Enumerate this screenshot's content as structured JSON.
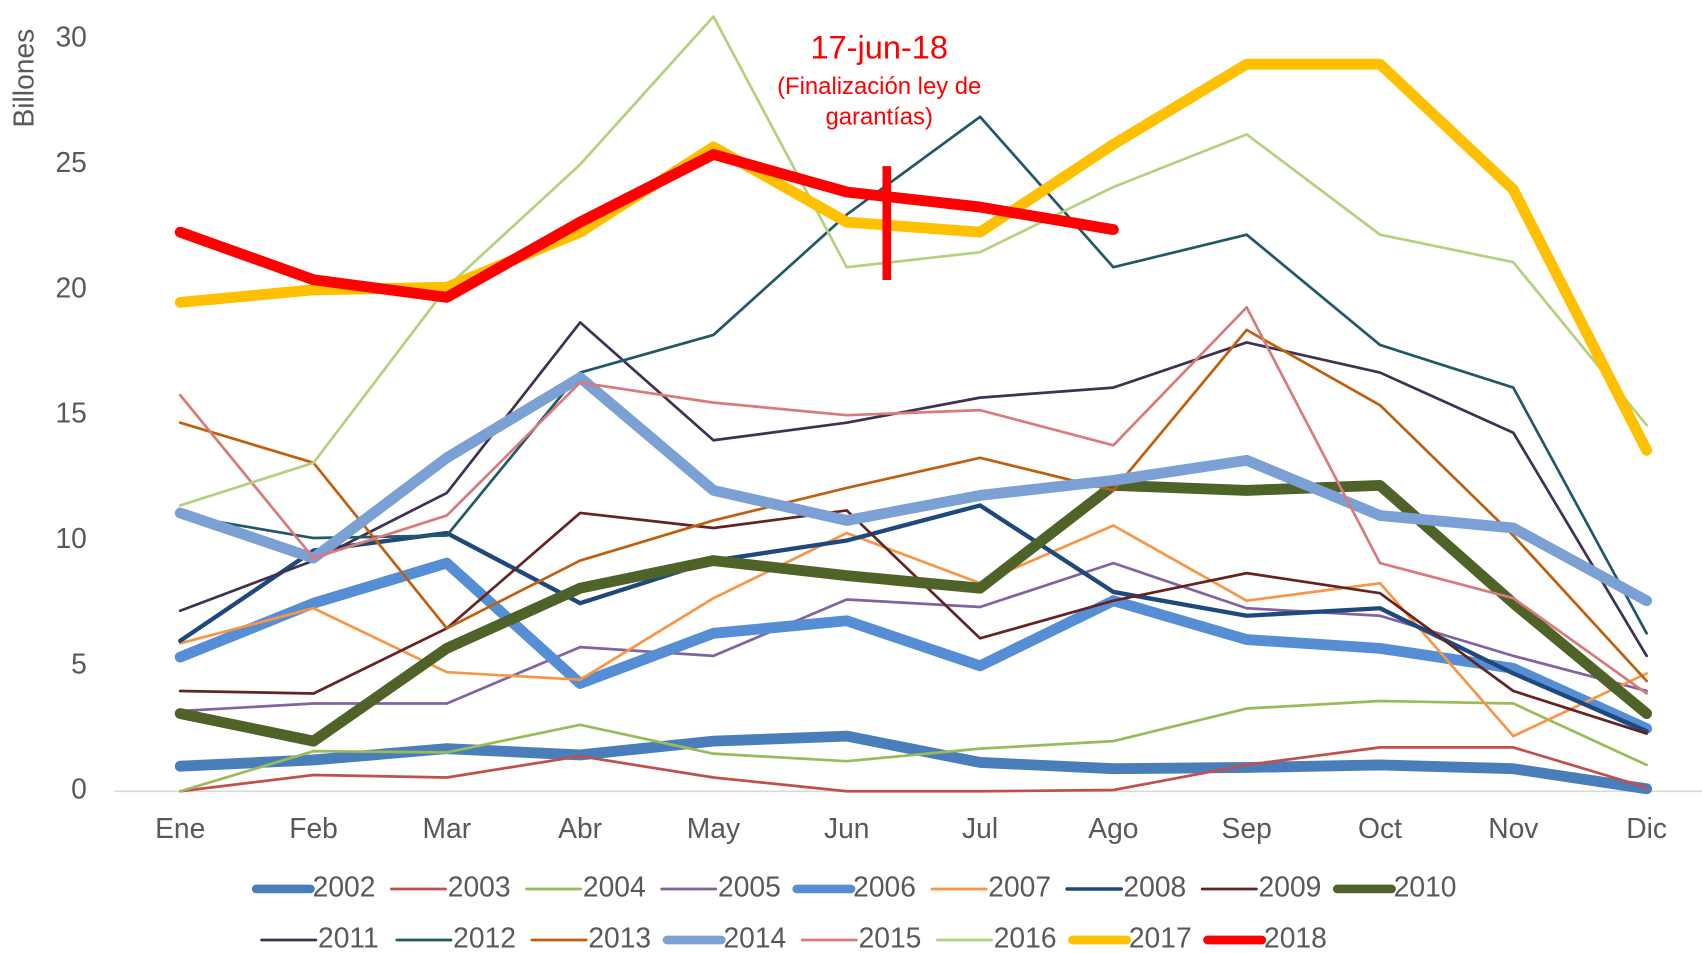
{
  "chart_data": {
    "type": "line",
    "y_label": "Billones",
    "categories": [
      "Ene",
      "Feb",
      "Mar",
      "Abr",
      "May",
      "Jun",
      "Jul",
      "Ago",
      "Sep",
      "Oct",
      "Nov",
      "Dic"
    ],
    "ylim": [
      0,
      30
    ],
    "yticks": [
      0,
      5,
      10,
      15,
      20,
      25,
      30
    ],
    "grid": false,
    "legend": "bottom",
    "annotation": {
      "title": "17-jun-18",
      "lines": [
        "(Finalización ley de",
        "garantías)"
      ],
      "color": "#ff0000"
    },
    "series": [
      {
        "name": "2002",
        "color": "#4a7ebb",
        "linewidth": 10,
        "values": [
          1.0,
          1.25,
          1.7,
          1.45,
          2.0,
          2.2,
          1.15,
          0.9,
          0.95,
          1.05,
          0.9,
          0.1
        ]
      },
      {
        "name": "2003",
        "color": "#c0504d",
        "linewidth": 2.5,
        "values": [
          0,
          0.65,
          0.55,
          1.4,
          0.55,
          0,
          0,
          0.05,
          1.05,
          1.75,
          1.75,
          0.15
        ]
      },
      {
        "name": "2004",
        "color": "#9bbb59",
        "linewidth": 2.5,
        "values": [
          0,
          1.6,
          1.55,
          2.65,
          1.5,
          1.2,
          1.7,
          2.0,
          3.3,
          3.6,
          3.5,
          1.05
        ]
      },
      {
        "name": "2005",
        "color": "#8064a2",
        "linewidth": 2.5,
        "values": [
          3.2,
          3.5,
          3.5,
          5.75,
          5.4,
          7.65,
          7.35,
          9.1,
          7.3,
          7.0,
          5.4,
          4.0
        ]
      },
      {
        "name": "2006",
        "color": "#558ed5",
        "linewidth": 10,
        "values": [
          5.35,
          7.5,
          9.1,
          4.3,
          6.3,
          6.8,
          5.0,
          7.6,
          6.05,
          5.7,
          4.9,
          2.5
        ]
      },
      {
        "name": "2007",
        "color": "#f79646",
        "linewidth": 2.5,
        "values": [
          5.9,
          7.3,
          4.75,
          4.45,
          7.7,
          10.3,
          8.3,
          10.6,
          7.6,
          8.3,
          2.2,
          4.7
        ]
      },
      {
        "name": "2008",
        "color": "#1f497d",
        "linewidth": 4,
        "values": [
          6.0,
          9.6,
          10.3,
          7.5,
          9.2,
          10.0,
          11.4,
          7.95,
          7.0,
          7.3,
          4.7,
          2.4
        ]
      },
      {
        "name": "2009",
        "color": "#632423",
        "linewidth": 2.5,
        "values": [
          4.0,
          3.9,
          6.5,
          11.1,
          10.5,
          11.2,
          6.1,
          7.6,
          8.7,
          7.9,
          4.0,
          2.3
        ]
      },
      {
        "name": "2010",
        "color": "#4f6228",
        "linewidth": 10,
        "values": [
          3.1,
          2.0,
          5.7,
          8.1,
          9.2,
          8.6,
          8.1,
          12.2,
          12.0,
          12.2,
          7.5,
          3.1
        ]
      },
      {
        "name": "2011",
        "color": "#403152",
        "linewidth": 2.5,
        "values": [
          7.2,
          9.2,
          11.9,
          18.7,
          14.0,
          14.7,
          15.7,
          16.1,
          17.9,
          16.7,
          14.3,
          5.4
        ]
      },
      {
        "name": "2012",
        "color": "#215967",
        "linewidth": 2.5,
        "values": [
          11.0,
          10.1,
          10.2,
          16.7,
          18.2,
          23.0,
          26.9,
          20.9,
          22.2,
          17.8,
          16.1,
          6.3
        ]
      },
      {
        "name": "2013",
        "color": "#c0600f",
        "linewidth": 2.5,
        "values": [
          14.7,
          13.1,
          6.5,
          9.2,
          10.8,
          12.1,
          13.3,
          12.0,
          18.4,
          15.4,
          10.2,
          4.4
        ]
      },
      {
        "name": "2014",
        "color": "#7ba0d4",
        "linewidth": 10,
        "values": [
          11.1,
          9.3,
          13.3,
          16.5,
          12.0,
          10.8,
          11.8,
          12.4,
          13.2,
          11.0,
          10.5,
          7.6
        ]
      },
      {
        "name": "2015",
        "color": "#d87b7b",
        "linewidth": 2.5,
        "values": [
          15.8,
          9.3,
          11.0,
          16.3,
          15.5,
          15.0,
          15.2,
          13.8,
          19.3,
          9.1,
          7.7,
          3.9
        ]
      },
      {
        "name": "2016",
        "color": "#b5d17f",
        "linewidth": 2.5,
        "values": [
          11.4,
          13.1,
          20.1,
          25.0,
          30.9,
          20.9,
          21.5,
          24.1,
          26.2,
          22.2,
          21.1,
          14.6
        ]
      },
      {
        "name": "2017",
        "color": "#ffc000",
        "linewidth": 10,
        "values": [
          19.5,
          20.0,
          20.1,
          22.3,
          25.7,
          22.7,
          22.3,
          25.8,
          29.0,
          29.0,
          24.0,
          13.6
        ]
      },
      {
        "name": "2018",
        "color": "#ff0000",
        "linewidth": 10,
        "values": [
          22.3,
          20.4,
          19.7,
          22.7,
          25.4,
          23.9,
          23.3,
          22.4,
          null,
          null,
          null,
          null
        ]
      }
    ]
  }
}
